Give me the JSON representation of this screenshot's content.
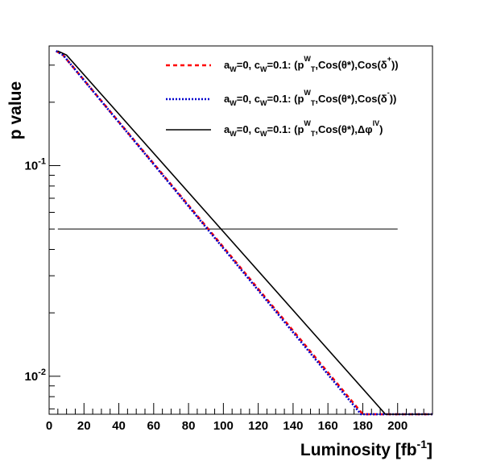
{
  "chart_data": {
    "type": "line",
    "ylabel": "p value",
    "xlabel_main": "Luminosity [fb",
    "xlabel_sup": "-1",
    "xlabel_close": "]",
    "xlim": [
      0,
      220
    ],
    "ylim": [
      0.0066,
      0.37
    ],
    "yscale": "log",
    "x_ticks": [
      0,
      20,
      40,
      60,
      80,
      100,
      120,
      140,
      160,
      180,
      200
    ],
    "x_tick_labels": [
      "0",
      "20",
      "40",
      "60",
      "80",
      "100",
      "120",
      "140",
      "160",
      "180",
      "200"
    ],
    "y_ticks": [
      {
        "value": 0.1,
        "base": "10",
        "exp": "-1"
      },
      {
        "value": 0.01,
        "base": "10",
        "exp": "-2"
      }
    ],
    "reference_line": {
      "y": 0.05,
      "x_range": [
        5,
        200
      ]
    },
    "legend_position": "top-right",
    "series": [
      {
        "legend_base": "a",
        "legend_parts": [
          {
            "t": "a",
            "s": "n"
          },
          {
            "t": "W",
            "s": "sub"
          },
          {
            "t": "=0, c",
            "s": "n"
          },
          {
            "t": "W",
            "s": "sub"
          },
          {
            "t": "=0.1: (p",
            "s": "n"
          },
          {
            "t": "W",
            "s": "sup"
          },
          {
            "t": "T",
            "s": "sub"
          },
          {
            "t": ",Cos(θ*),Cos(δ",
            "s": "n"
          },
          {
            "t": "+",
            "s": "sup"
          },
          {
            "t": "))",
            "s": "n"
          }
        ],
        "color": "#ff0000",
        "style": "dashed",
        "x": [
          4,
          8,
          180,
          220
        ],
        "y": [
          0.35,
          0.335,
          0.0066,
          0.0066
        ]
      },
      {
        "legend_parts": [
          {
            "t": "a",
            "s": "n"
          },
          {
            "t": "W",
            "s": "sub"
          },
          {
            "t": "=0, c",
            "s": "n"
          },
          {
            "t": "W",
            "s": "sub"
          },
          {
            "t": "=0.1: (p",
            "s": "n"
          },
          {
            "t": "W",
            "s": "sup"
          },
          {
            "t": "T",
            "s": "sub"
          },
          {
            "t": ",Cos(θ*),Cos(δ",
            "s": "n"
          },
          {
            "t": "-",
            "s": "sup"
          },
          {
            "t": "))",
            "s": "n"
          }
        ],
        "color": "#0000cc",
        "style": "dotted",
        "x": [
          4,
          8,
          179,
          220
        ],
        "y": [
          0.35,
          0.335,
          0.0066,
          0.0066
        ]
      },
      {
        "legend_parts": [
          {
            "t": "a",
            "s": "n"
          },
          {
            "t": "W",
            "s": "sub"
          },
          {
            "t": "=0, c",
            "s": "n"
          },
          {
            "t": "W",
            "s": "sub"
          },
          {
            "t": "=0.1: (p",
            "s": "n"
          },
          {
            "t": "W",
            "s": "sup"
          },
          {
            "t": "T",
            "s": "sub"
          },
          {
            "t": ",Cos(θ*),Δφ",
            "s": "n"
          },
          {
            "t": "lV",
            "s": "sup"
          },
          {
            "t": ")",
            "s": "n"
          }
        ],
        "color": "#000000",
        "style": "solid",
        "x": [
          5,
          10,
          193,
          220
        ],
        "y": [
          0.35,
          0.335,
          0.0066,
          0.0066
        ]
      }
    ]
  }
}
